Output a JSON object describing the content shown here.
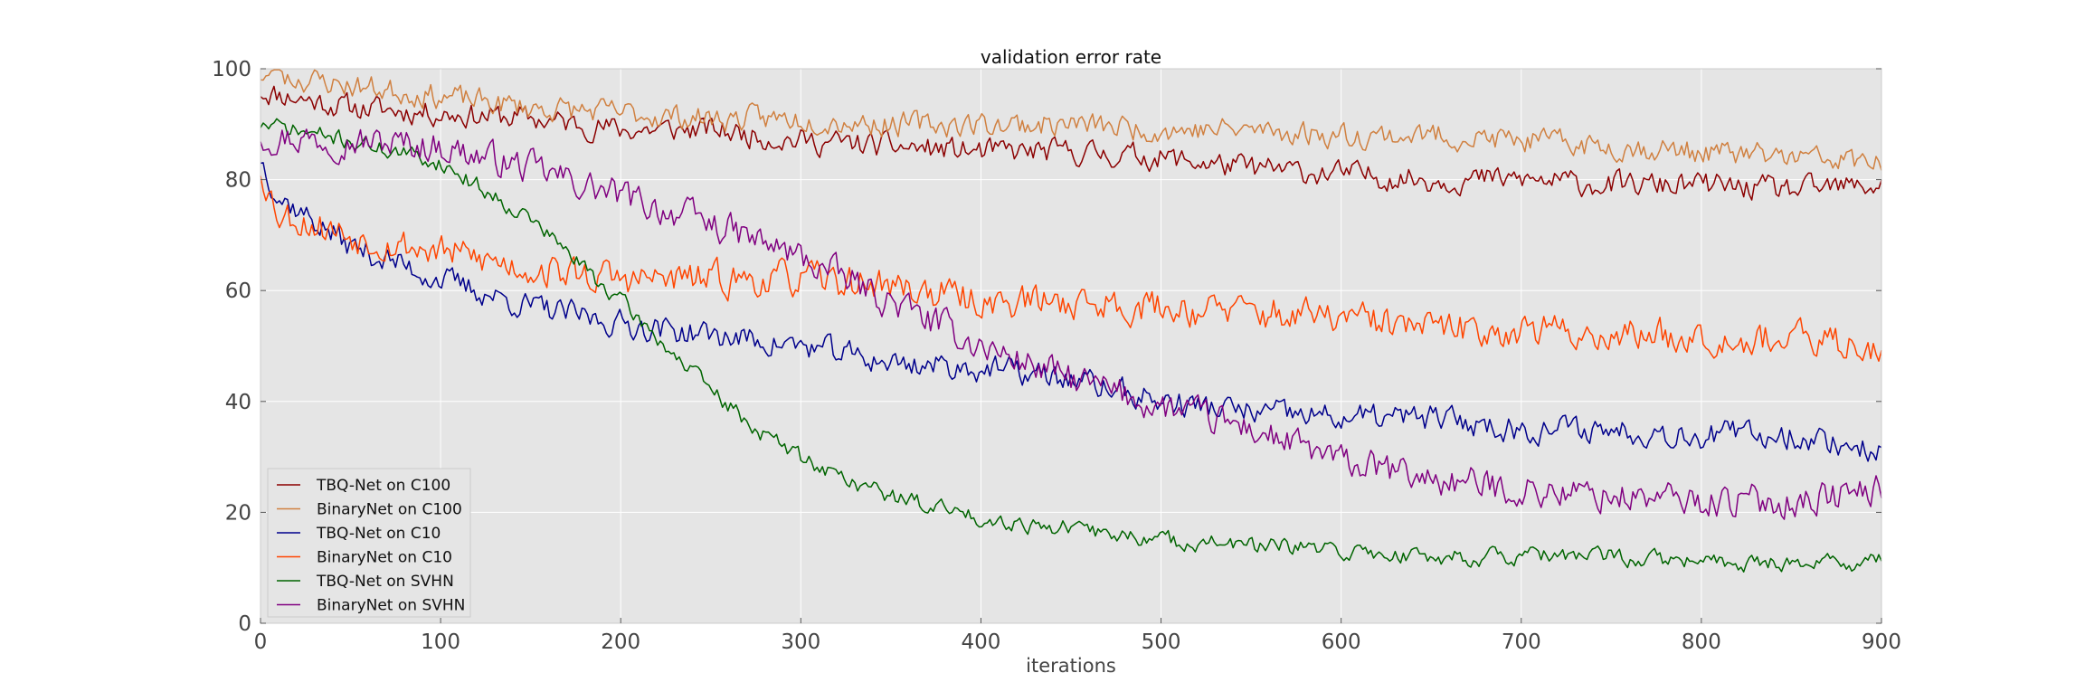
{
  "chart_data": {
    "type": "line",
    "title": "validation error rate",
    "xlabel": "iterations",
    "ylabel": "",
    "xlim": [
      0,
      900
    ],
    "ylim": [
      0,
      100
    ],
    "xticks": [
      0,
      100,
      200,
      300,
      400,
      500,
      600,
      700,
      800,
      900
    ],
    "yticks": [
      0,
      20,
      40,
      60,
      80,
      100
    ],
    "xtick_labels": [
      "0",
      "100",
      "200",
      "300",
      "400",
      "500",
      "600",
      "700",
      "800",
      "900"
    ],
    "ytick_labels": [
      "0",
      "20",
      "40",
      "60",
      "80",
      "100"
    ],
    "grid": true,
    "legend_position": "lower-left",
    "background": "#e5e5e5",
    "series": [
      {
        "name": "TBQ-Net on C100",
        "color": "#8b0000",
        "noise": 2.6,
        "seed": 11,
        "points": [
          [
            0,
            96
          ],
          [
            50,
            93
          ],
          [
            100,
            92
          ],
          [
            150,
            91
          ],
          [
            200,
            89
          ],
          [
            250,
            89
          ],
          [
            300,
            87
          ],
          [
            350,
            86
          ],
          [
            400,
            85
          ],
          [
            450,
            85
          ],
          [
            500,
            84
          ],
          [
            550,
            82
          ],
          [
            600,
            81
          ],
          [
            650,
            80
          ],
          [
            700,
            80
          ],
          [
            750,
            79
          ],
          [
            800,
            79
          ],
          [
            850,
            78
          ],
          [
            900,
            79
          ]
        ]
      },
      {
        "name": "BinaryNet on C100",
        "color": "#d08040",
        "noise": 2.6,
        "seed": 23,
        "points": [
          [
            0,
            99
          ],
          [
            50,
            97
          ],
          [
            100,
            95
          ],
          [
            150,
            93
          ],
          [
            200,
            92
          ],
          [
            250,
            91
          ],
          [
            300,
            91
          ],
          [
            350,
            90
          ],
          [
            400,
            90
          ],
          [
            450,
            90
          ],
          [
            500,
            89
          ],
          [
            550,
            89
          ],
          [
            600,
            88
          ],
          [
            650,
            88
          ],
          [
            700,
            87
          ],
          [
            750,
            86
          ],
          [
            800,
            85
          ],
          [
            850,
            84
          ],
          [
            900,
            83
          ]
        ]
      },
      {
        "name": "TBQ-Net on C10",
        "color": "#00008b",
        "noise": 2.8,
        "seed": 37,
        "points": [
          [
            0,
            84
          ],
          [
            10,
            77
          ],
          [
            50,
            68
          ],
          [
            100,
            62
          ],
          [
            150,
            57
          ],
          [
            200,
            54
          ],
          [
            250,
            52
          ],
          [
            300,
            50
          ],
          [
            350,
            47
          ],
          [
            400,
            46
          ],
          [
            450,
            44
          ],
          [
            500,
            40
          ],
          [
            550,
            38
          ],
          [
            600,
            37
          ],
          [
            650,
            37
          ],
          [
            700,
            35
          ],
          [
            750,
            35
          ],
          [
            800,
            34
          ],
          [
            850,
            34
          ],
          [
            900,
            31
          ]
        ]
      },
      {
        "name": "BinaryNet on C10",
        "color": "#ff4500",
        "noise": 3.6,
        "seed": 53,
        "points": [
          [
            0,
            82
          ],
          [
            10,
            74
          ],
          [
            50,
            70
          ],
          [
            100,
            67
          ],
          [
            150,
            64
          ],
          [
            200,
            62
          ],
          [
            250,
            62
          ],
          [
            300,
            62
          ],
          [
            350,
            61
          ],
          [
            400,
            58
          ],
          [
            450,
            58
          ],
          [
            500,
            57
          ],
          [
            550,
            56
          ],
          [
            600,
            55
          ],
          [
            650,
            53
          ],
          [
            700,
            53
          ],
          [
            750,
            52
          ],
          [
            800,
            52
          ],
          [
            850,
            51
          ],
          [
            900,
            50
          ]
        ]
      },
      {
        "name": "TBQ-Net on SVHN",
        "color": "#006400",
        "noise": 1.8,
        "seed": 71,
        "points": [
          [
            0,
            90
          ],
          [
            50,
            87
          ],
          [
            100,
            83
          ],
          [
            150,
            73
          ],
          [
            200,
            58
          ],
          [
            225,
            50
          ],
          [
            250,
            42
          ],
          [
            275,
            35
          ],
          [
            300,
            30
          ],
          [
            325,
            26
          ],
          [
            350,
            23
          ],
          [
            400,
            19
          ],
          [
            450,
            17
          ],
          [
            500,
            15
          ],
          [
            550,
            14
          ],
          [
            600,
            13
          ],
          [
            650,
            12
          ],
          [
            700,
            12
          ],
          [
            750,
            12
          ],
          [
            800,
            11
          ],
          [
            850,
            11
          ],
          [
            900,
            11
          ]
        ]
      },
      {
        "name": "BinaryNet on SVHN",
        "color": "#800080",
        "noise": 3.4,
        "seed": 97,
        "points": [
          [
            0,
            88
          ],
          [
            50,
            87
          ],
          [
            100,
            86
          ],
          [
            150,
            82
          ],
          [
            200,
            77
          ],
          [
            250,
            72
          ],
          [
            300,
            66
          ],
          [
            350,
            58
          ],
          [
            400,
            50
          ],
          [
            450,
            44
          ],
          [
            500,
            39
          ],
          [
            550,
            35
          ],
          [
            600,
            29
          ],
          [
            650,
            26
          ],
          [
            700,
            24
          ],
          [
            750,
            23
          ],
          [
            800,
            22
          ],
          [
            850,
            22
          ],
          [
            900,
            24
          ]
        ]
      }
    ]
  }
}
